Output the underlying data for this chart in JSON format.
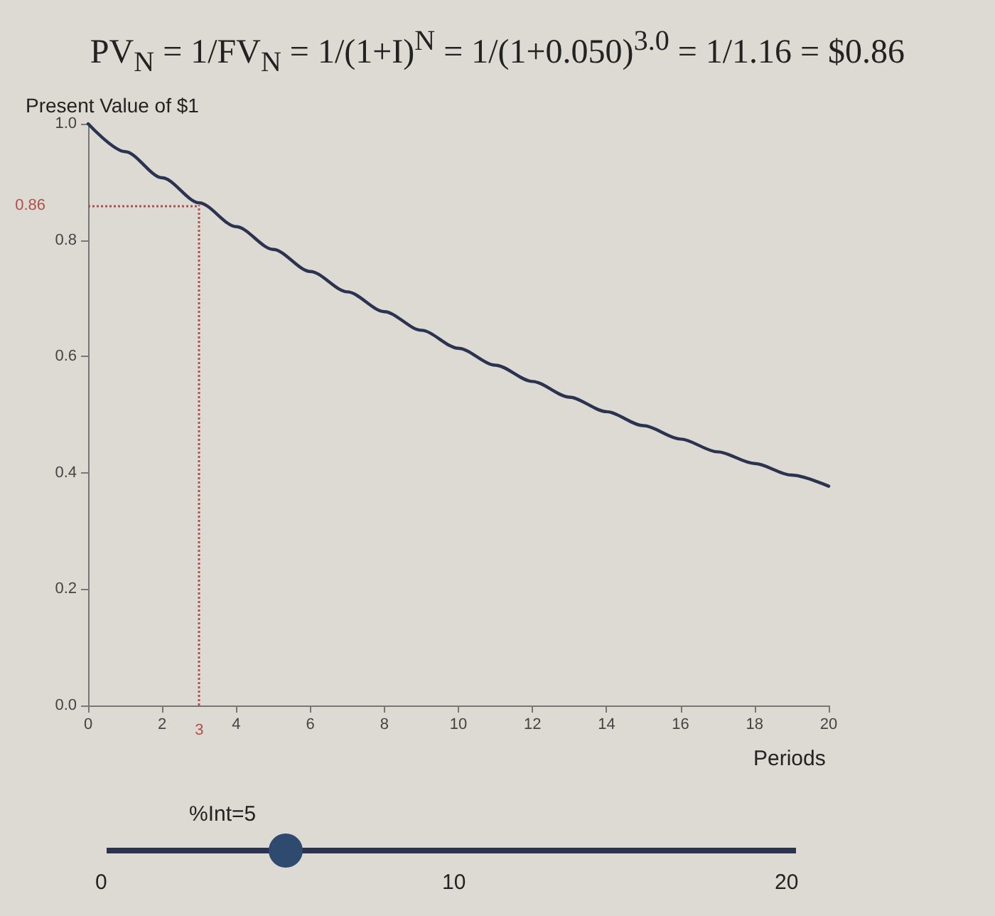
{
  "chart_data": {
    "type": "line",
    "title": "PV$_{N}$ = 1/FV$_{N}$ = 1/(1+I)$^{N}$ = 1/(1+0.050)$^{3.0}$ = 1/1.16 = $0.86",
    "xlabel": "Periods",
    "ylabel": "Present Value of $1",
    "x": [
      0,
      1,
      2,
      3,
      4,
      5,
      6,
      7,
      8,
      9,
      10,
      11,
      12,
      13,
      14,
      15,
      16,
      17,
      18,
      19,
      20
    ],
    "series": [
      {
        "color": "#2b3350",
        "values": [
          1.0,
          0.952,
          0.907,
          0.864,
          0.823,
          0.784,
          0.746,
          0.711,
          0.677,
          0.645,
          0.614,
          0.585,
          0.557,
          0.53,
          0.505,
          0.481,
          0.458,
          0.436,
          0.416,
          0.396,
          0.377
        ]
      }
    ],
    "xlim": [
      0,
      20
    ],
    "xticks": [
      0,
      2,
      4,
      6,
      8,
      10,
      12,
      14,
      16,
      18,
      20
    ],
    "ylim": [
      0,
      1
    ],
    "yticks": [
      {
        "value": 0,
        "label": "0.0"
      },
      0.2,
      0.4,
      0.6,
      0.8,
      {
        "value": 1,
        "label": "1.0"
      }
    ],
    "ref_lines": [
      {
        "axis": "y",
        "value": 0.86,
        "label": "0.86",
        "color": "#b0504c",
        "line_style": "dotted"
      },
      {
        "axis": "x",
        "value": 3,
        "label": "3",
        "color": "#b0504c",
        "line_style": "dotted"
      }
    ],
    "annotations": [
      "%Int=5",
      "0",
      "10",
      "20"
    ],
    "grid": false,
    "marker": "none",
    "line_style": "solid"
  }
}
